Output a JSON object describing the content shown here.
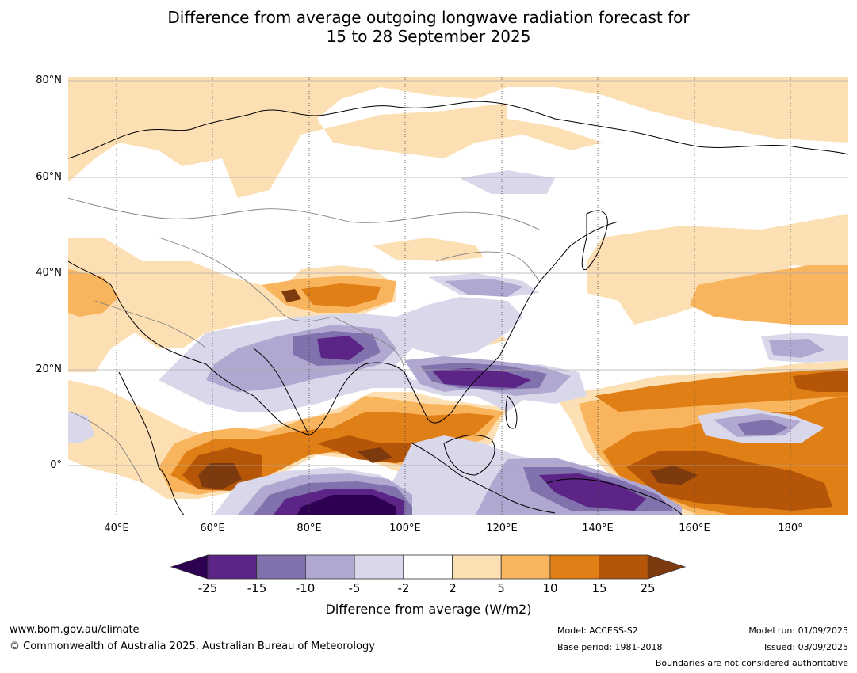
{
  "title": {
    "line1": "Difference from average outgoing longwave radiation forecast for",
    "line2": "15 to 28 September 2025"
  },
  "map": {
    "lat_labels": [
      "80°N",
      "60°N",
      "40°N",
      "20°N",
      "0°"
    ],
    "lon_labels": [
      "40°E",
      "60°E",
      "80°E",
      "100°E",
      "120°E",
      "140°E",
      "160°E",
      "180°"
    ]
  },
  "colorbar": {
    "ticks": [
      "-25",
      "-15",
      "-10",
      "-5",
      "-2",
      "2",
      "5",
      "10",
      "15",
      "25"
    ],
    "colors": [
      "#2d0051",
      "#5b2486",
      "#8171ac",
      "#b1a8d1",
      "#d8d8ea",
      "#ffffff",
      "#fddfb4",
      "#f9b45e",
      "#e07f16",
      "#b45508",
      "#7d3a0e"
    ],
    "label": "Difference from average (W/m2)"
  },
  "footer": {
    "url": "www.bom.gov.au/climate",
    "copyright": "© Commonwealth of Australia 2025, Australian Bureau of Meteorology",
    "model": "Model: ACCESS-S2",
    "base_period": "Base period: 1981-2018",
    "model_run": "Model run: 01/09/2025",
    "issued": "Issued: 03/09/2025",
    "disclaimer": "Boundaries are not considered authoritative"
  }
}
